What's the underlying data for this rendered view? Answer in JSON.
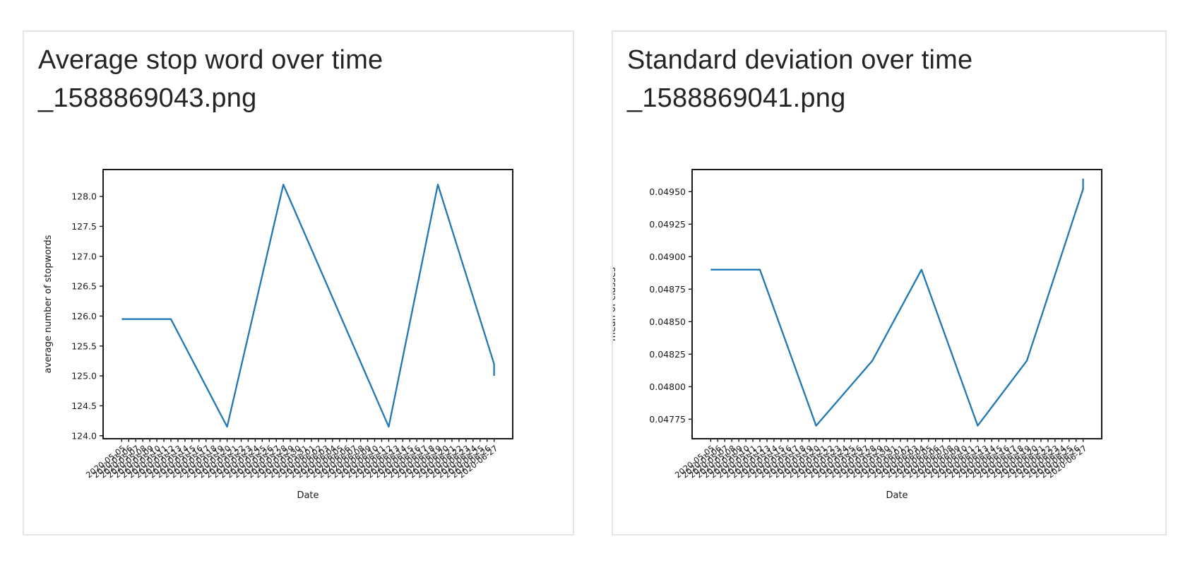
{
  "page": {
    "background": "#ffffff"
  },
  "cards": [
    {
      "title": "Average stop word over time _1588869043.png"
    },
    {
      "title": "Standard deviation over time _1588869041.png"
    }
  ],
  "chart_data": [
    {
      "type": "line",
      "title": "Average stop word over time _1588869043.png",
      "xlabel": "Date",
      "ylabel": "average number of stopwords",
      "ylabel_clipped": false,
      "line_color": "#1f77b4",
      "grid": false,
      "legend": "none",
      "ylim": [
        123.95,
        128.45
      ],
      "y_ticks": [
        "124.0",
        "124.5",
        "125.0",
        "125.5",
        "126.0",
        "126.5",
        "127.0",
        "127.5",
        "128.0"
      ],
      "x_categories": [
        "2020-05-05",
        "2020-05-06",
        "2020-05-07",
        "2020-05-08",
        "2020-05-09",
        "2020-05-10",
        "2020-05-11",
        "2020-05-12",
        "2020-05-13",
        "2020-05-14",
        "2020-05-15",
        "2020-05-16",
        "2020-05-17",
        "2020-05-18",
        "2020-05-19",
        "2020-05-20",
        "2020-05-21",
        "2020-05-22",
        "2020-05-23",
        "2020-05-24",
        "2020-05-25",
        "2020-05-26",
        "2020-05-27",
        "2020-05-28",
        "2020-05-29",
        "2020-05-30",
        "2020-05-31",
        "2020-06-01",
        "2020-06-02",
        "2020-06-03",
        "2020-06-04",
        "2020-06-05",
        "2020-06-06",
        "2020-06-07",
        "2020-06-08",
        "2020-06-09",
        "2020-06-10",
        "2020-06-11",
        "2020-06-12",
        "2020-06-13",
        "2020-06-14",
        "2020-06-15",
        "2020-06-16",
        "2020-06-17",
        "2020-06-18",
        "2020-06-19",
        "2020-06-20",
        "2020-06-21",
        "2020-06-22",
        "2020-06-23",
        "2020-06-24",
        "2020-06-25",
        "2020-06-26",
        "2020-06-27"
      ],
      "vertices": [
        [
          0,
          125.95
        ],
        [
          7,
          125.95
        ],
        [
          15,
          124.15
        ],
        [
          23,
          128.2
        ],
        [
          38,
          124.15
        ],
        [
          45,
          128.2
        ],
        [
          53,
          125.2
        ],
        [
          53,
          125.0
        ]
      ],
      "values": [
        125.95,
        125.95,
        125.95,
        125.95,
        125.95,
        125.95,
        125.95,
        125.95,
        125.73,
        125.5,
        125.28,
        125.05,
        124.83,
        124.6,
        124.38,
        124.15,
        124.66,
        125.16,
        125.67,
        126.18,
        126.68,
        127.19,
        127.69,
        128.2,
        127.93,
        127.66,
        127.39,
        127.12,
        126.85,
        126.58,
        126.31,
        126.04,
        125.77,
        125.5,
        125.23,
        124.96,
        124.69,
        124.42,
        124.15,
        124.73,
        125.31,
        125.89,
        126.46,
        127.04,
        127.62,
        128.2,
        127.83,
        127.45,
        127.08,
        126.7,
        126.33,
        125.95,
        125.58,
        125.0
      ]
    },
    {
      "type": "line",
      "title": "Standard deviation over time _1588869041.png",
      "xlabel": "Date",
      "ylabel": "mean of classes",
      "ylabel_clipped": true,
      "line_color": "#1f77b4",
      "grid": false,
      "legend": "none",
      "ylim": [
        0.0476,
        0.04967
      ],
      "y_ticks": [
        "0.04775",
        "0.04800",
        "0.04825",
        "0.04850",
        "0.04875",
        "0.04900",
        "0.04925",
        "0.04950"
      ],
      "x_categories": [
        "2020-05-05",
        "2020-05-06",
        "2020-05-07",
        "2020-05-08",
        "2020-05-09",
        "2020-05-10",
        "2020-05-11",
        "2020-05-12",
        "2020-05-13",
        "2020-05-14",
        "2020-05-15",
        "2020-05-16",
        "2020-05-17",
        "2020-05-18",
        "2020-05-19",
        "2020-05-20",
        "2020-05-21",
        "2020-05-22",
        "2020-05-23",
        "2020-05-24",
        "2020-05-25",
        "2020-05-26",
        "2020-05-27",
        "2020-05-28",
        "2020-05-29",
        "2020-05-30",
        "2020-05-31",
        "2020-06-01",
        "2020-06-02",
        "2020-06-03",
        "2020-06-04",
        "2020-06-05",
        "2020-06-06",
        "2020-06-07",
        "2020-06-08",
        "2020-06-09",
        "2020-06-10",
        "2020-06-11",
        "2020-06-12",
        "2020-06-13",
        "2020-06-14",
        "2020-06-15",
        "2020-06-16",
        "2020-06-17",
        "2020-06-18",
        "2020-06-19",
        "2020-06-20",
        "2020-06-21",
        "2020-06-22",
        "2020-06-23",
        "2020-06-24",
        "2020-06-25",
        "2020-06-26",
        "2020-06-27"
      ],
      "vertices": [
        [
          0,
          0.0489
        ],
        [
          7,
          0.0489
        ],
        [
          15,
          0.0477
        ],
        [
          23,
          0.0482
        ],
        [
          30,
          0.0489
        ],
        [
          38,
          0.0477
        ],
        [
          45,
          0.0482
        ],
        [
          53,
          0.04952
        ],
        [
          53,
          0.0496
        ]
      ],
      "values": [
        0.0489,
        0.0489,
        0.0489,
        0.0489,
        0.0489,
        0.0489,
        0.0489,
        0.0489,
        0.04875,
        0.0486,
        0.04845,
        0.0483,
        0.04815,
        0.048,
        0.04785,
        0.0477,
        0.04776,
        0.04783,
        0.04789,
        0.04795,
        0.04801,
        0.04808,
        0.04814,
        0.0482,
        0.0483,
        0.0484,
        0.0485,
        0.0486,
        0.0487,
        0.0488,
        0.0489,
        0.04875,
        0.0486,
        0.04845,
        0.0483,
        0.04815,
        0.048,
        0.04785,
        0.0477,
        0.04777,
        0.04784,
        0.04791,
        0.04799,
        0.04806,
        0.04813,
        0.0482,
        0.04837,
        0.04853,
        0.0487,
        0.04886,
        0.04903,
        0.04919,
        0.04936,
        0.0496
      ]
    }
  ]
}
